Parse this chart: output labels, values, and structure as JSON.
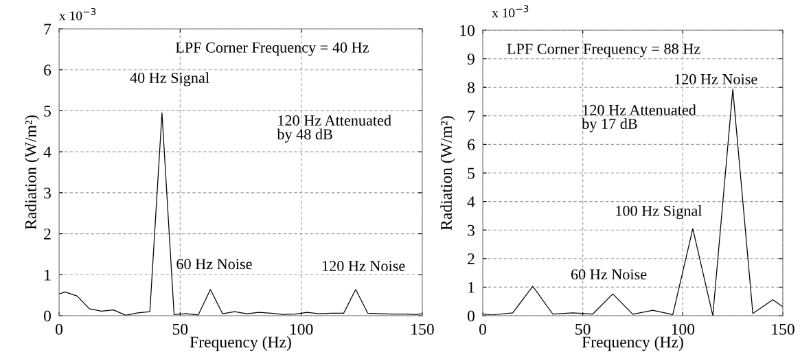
{
  "chart_data": [
    {
      "type": "line",
      "xlabel": "Frequency (Hz)",
      "ylabel": "Radiation (W/m²)",
      "x": [
        0,
        2.5,
        7.5,
        12.5,
        17.5,
        22.5,
        27.5,
        32.5,
        37.5,
        42.5,
        47.5,
        52.5,
        57.5,
        62.5,
        67.5,
        72.5,
        77.5,
        82.5,
        87.5,
        92.5,
        97.5,
        102.5,
        107.5,
        112.5,
        117.5,
        122.5,
        127.5,
        132.5,
        137.5,
        142.5,
        147.5,
        150
      ],
      "series": [
        {
          "color": "#000000",
          "values": [
            0.53,
            0.58,
            0.48,
            0.17,
            0.11,
            0.14,
            0.01,
            0.07,
            0.1,
            4.95,
            0.03,
            0.05,
            0.02,
            0.64,
            0.05,
            0.1,
            0.05,
            0.08,
            0.06,
            0.03,
            0.04,
            0.08,
            0.05,
            0.06,
            0.06,
            0.64,
            0.06,
            0.05,
            0.04,
            0.04,
            0.03,
            0.05
          ]
        }
      ],
      "xlim": [
        0,
        150
      ],
      "xticks": [
        0,
        50,
        100,
        150
      ],
      "ylim": [
        0,
        7
      ],
      "yticks": [
        0,
        1,
        2,
        3,
        4,
        5,
        6,
        7
      ],
      "grid": true,
      "marker": "none",
      "line_style": "solid",
      "annotations": [
        "x 10$^{−3}$",
        "LPF Corner Frequency = 40 Hz",
        "120 Hz Attenuated\nby 48 dB",
        {
          "text": "40 Hz Signal",
          "x": 42.5,
          "y": 4.95
        },
        {
          "text": "60 Hz Noise",
          "x": 62.5,
          "y": 0.64
        },
        {
          "text": "120 Hz Noise",
          "x": 122.5,
          "y": 0.64
        }
      ]
    },
    {
      "type": "line",
      "xlabel": "Frequency (Hz)",
      "ylabel": "Radiation (W/m²)",
      "x": [
        0,
        5,
        15,
        25,
        35,
        45,
        55,
        65,
        75,
        85,
        95,
        105,
        115,
        125,
        135,
        145,
        150
      ],
      "series": [
        {
          "color": "#000000",
          "values": [
            0.06,
            0.03,
            0.1,
            1.03,
            0.06,
            0.1,
            0.06,
            0.76,
            0.05,
            0.19,
            0.04,
            3.05,
            0,
            7.93,
            0.08,
            0.56,
            0.31
          ]
        }
      ],
      "xlim": [
        0,
        150
      ],
      "xticks": [
        0,
        50,
        100,
        150
      ],
      "ylim": [
        0,
        10
      ],
      "yticks": [
        0,
        1,
        2,
        3,
        4,
        5,
        6,
        7,
        8,
        9,
        10
      ],
      "grid": true,
      "marker": "none",
      "line_style": "solid",
      "annotations": [
        "x 10$^{−3}$",
        "LPF Corner Frequency = 88 Hz",
        "120 Hz Attenuated\nby 17 dB",
        {
          "text": "120 Hz Noise",
          "x": 125,
          "y": 7.93
        },
        {
          "text": "100 Hz Signal",
          "x": 105,
          "y": 3.05
        },
        "60 Hz Noise"
      ]
    }
  ]
}
